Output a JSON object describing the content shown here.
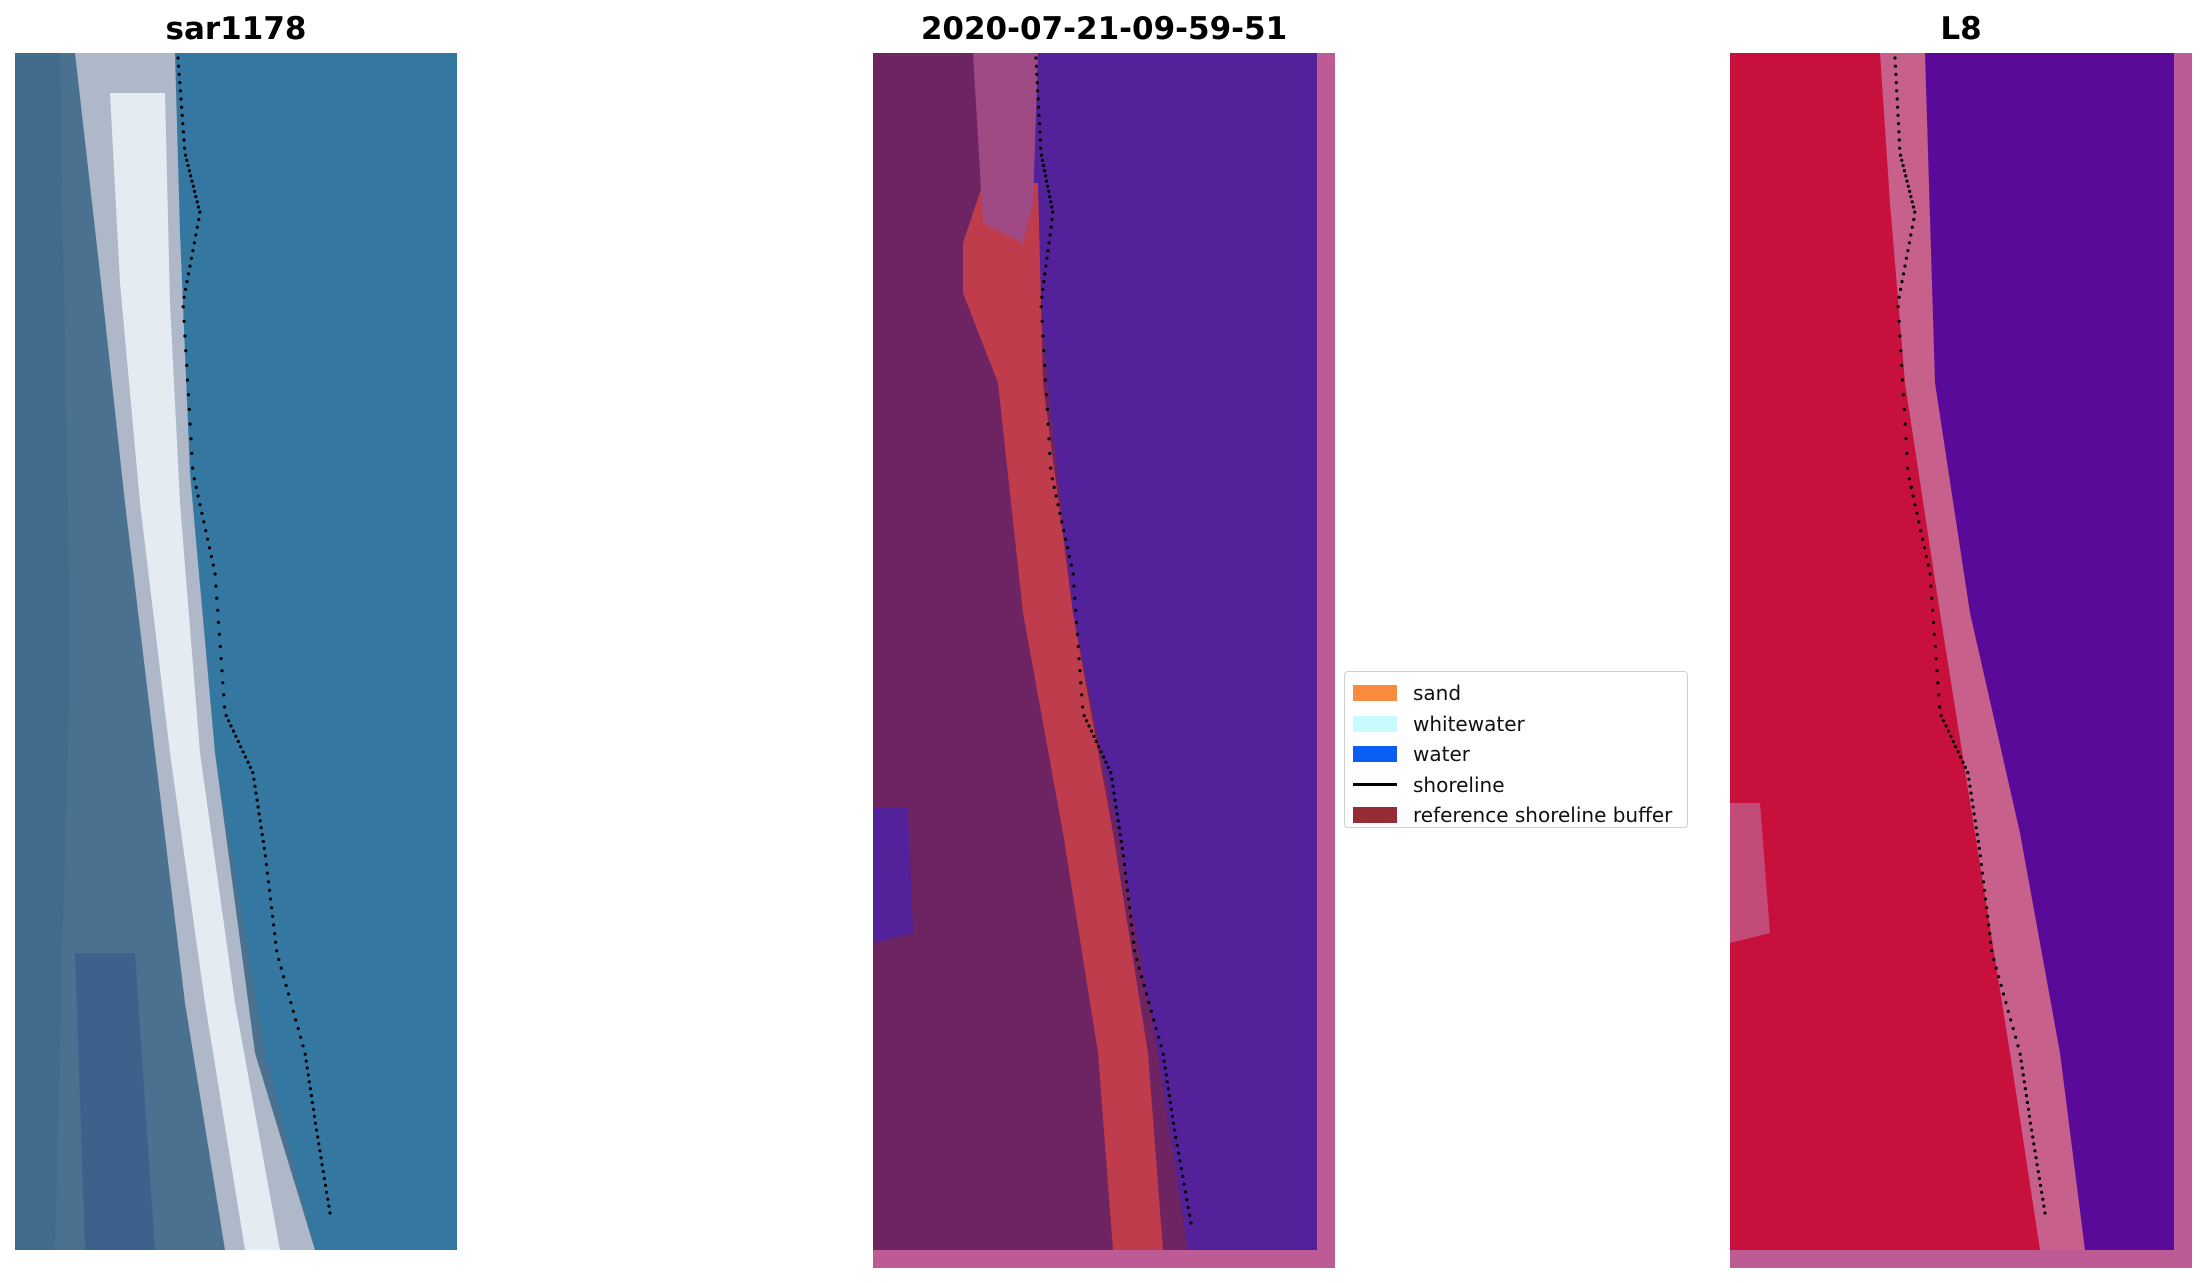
{
  "panels": [
    {
      "title": "sar1178",
      "kind": "rgb-image"
    },
    {
      "title": "2020-07-21-09-59-51",
      "kind": "classified-overlay"
    },
    {
      "title": "L8",
      "kind": "false-color-image"
    }
  ],
  "legend": {
    "items": [
      {
        "label": "sand",
        "type": "patch",
        "color": "#f88b3c"
      },
      {
        "label": "whitewater",
        "type": "patch",
        "color": "#c8fcfc"
      },
      {
        "label": "water",
        "type": "patch",
        "color": "#0a5ef5"
      },
      {
        "label": "shoreline",
        "type": "line",
        "color": "#000000"
      },
      {
        "label": "reference shoreline buffer",
        "type": "patch",
        "color": "#962d35"
      }
    ]
  },
  "colors": {
    "water_rgb": "#2e6e9c",
    "land_rgb": "#4a7290",
    "beach_rgb": "#dce6ee",
    "class_land": "#6e2363",
    "class_water": "#53219a",
    "class_buffer": "#be3c4b",
    "class_border": "#bd5c94",
    "l8_land": "#c8103c",
    "l8_water": "#5a0a98",
    "l8_border": "#bd5c94",
    "shoreline": "#000000"
  }
}
